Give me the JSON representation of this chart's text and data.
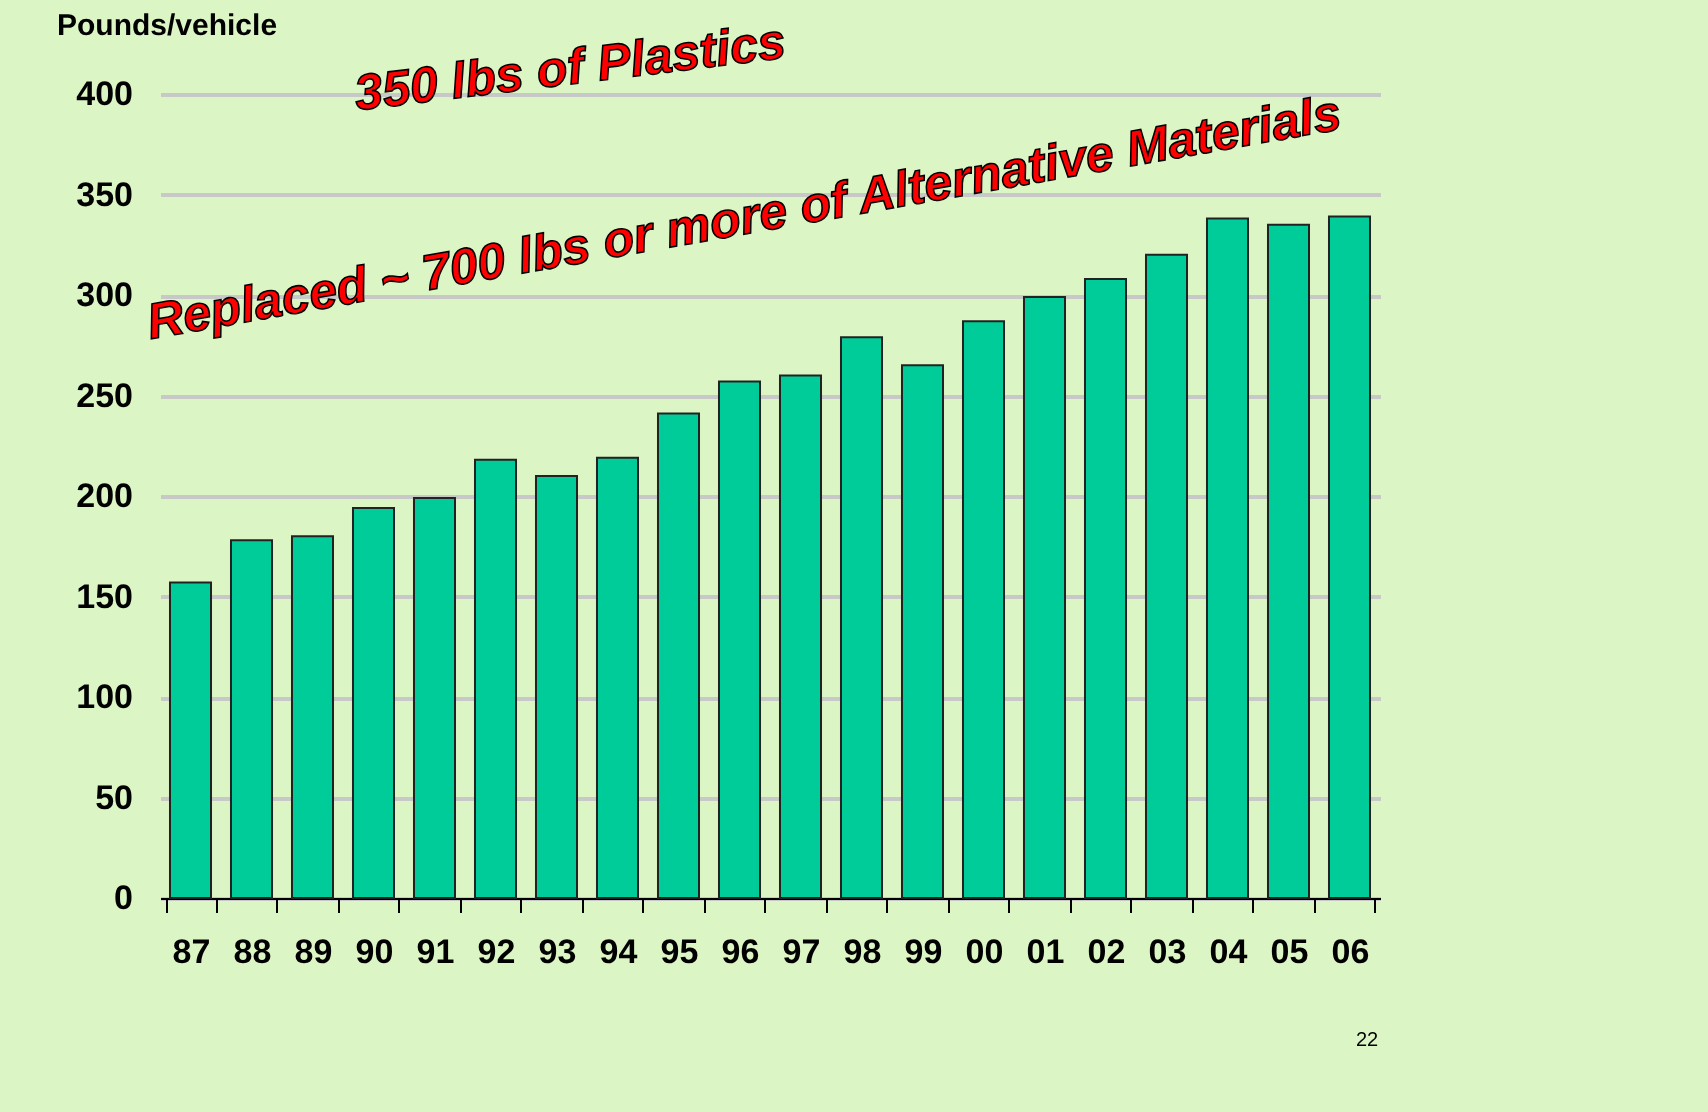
{
  "chart_data": {
    "type": "bar",
    "ylabel": "Pounds/vehicle",
    "categories": [
      "87",
      "88",
      "89",
      "90",
      "91",
      "92",
      "93",
      "94",
      "95",
      "96",
      "97",
      "98",
      "99",
      "00",
      "01",
      "02",
      "03",
      "04",
      "05",
      "06"
    ],
    "values": [
      157,
      178,
      180,
      194,
      199,
      218,
      210,
      219,
      241,
      257,
      260,
      279,
      265,
      287,
      299,
      308,
      320,
      338,
      335,
      339
    ],
    "color": "#00cc99",
    "ylim": [
      0,
      400
    ],
    "yticks": [
      0,
      50,
      100,
      150,
      200,
      250,
      300,
      350,
      400
    ],
    "grid": "y",
    "annotations": [
      "350 lbs of Plastics",
      "Replaced ~ 700 lbs or more of Alternative Materials",
      "22"
    ]
  }
}
